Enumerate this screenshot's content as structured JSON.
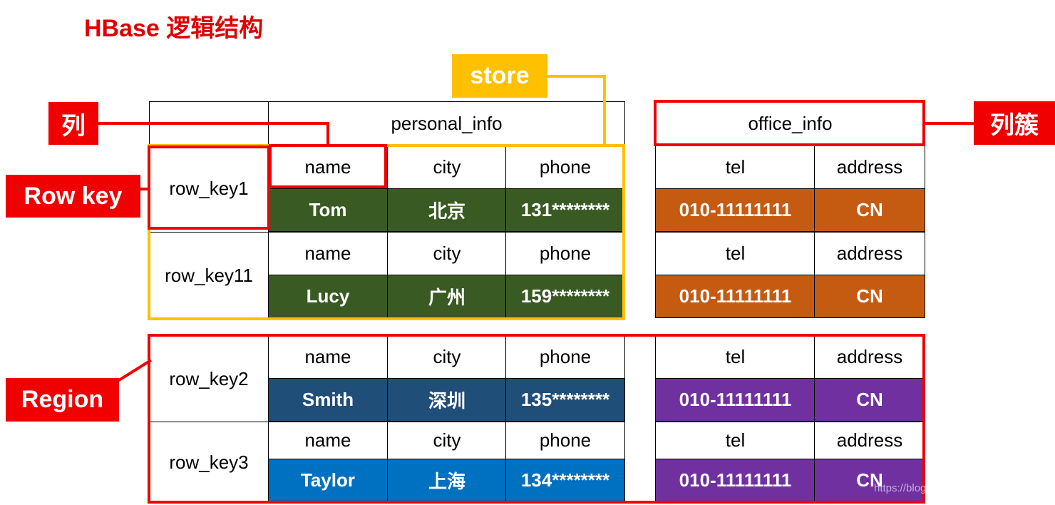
{
  "title": "HBase 逻辑结构",
  "labels": {
    "store": "store",
    "column": "列",
    "row_key": "Row key",
    "region": "Region",
    "column_family": "列簇"
  },
  "families": [
    "personal_info",
    "office_info"
  ],
  "rows": [
    {
      "key": "row_key1",
      "columns": [
        "name",
        "city",
        "phone",
        "tel",
        "address"
      ],
      "values": [
        "Tom",
        "北京",
        "131********",
        "010-11111111",
        "CN"
      ]
    },
    {
      "key": "row_key11",
      "columns": [
        "name",
        "city",
        "phone",
        "tel",
        "address"
      ],
      "values": [
        "Lucy",
        "广州",
        "159********",
        "010-11111111",
        "CN"
      ]
    },
    {
      "key": "row_key2",
      "columns": [
        "name",
        "city",
        "phone",
        "tel",
        "address"
      ],
      "values": [
        "Smith",
        "深圳",
        "135********",
        "010-11111111",
        "CN"
      ]
    },
    {
      "key": "row_key3",
      "columns": [
        "name",
        "city",
        "phone",
        "tel",
        "address"
      ],
      "values": [
        "Taylor",
        "上海",
        "134********",
        "010-11111111",
        "CN"
      ]
    }
  ],
  "watermark": "https://blog"
}
